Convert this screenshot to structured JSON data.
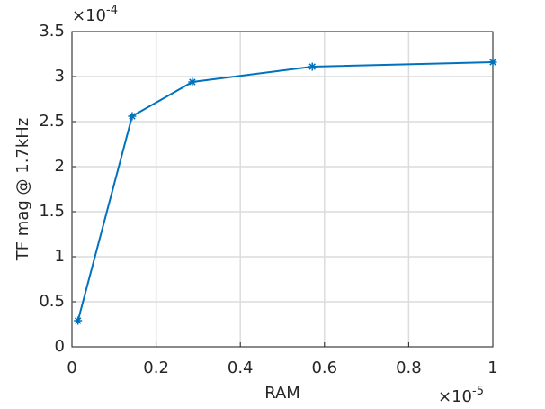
{
  "chart_data": {
    "type": "line",
    "x_label": "RAM",
    "y_label": "TF mag @ 1.7kHz",
    "x_multiplier": {
      "base": "×10",
      "exponent": "-5"
    },
    "y_multiplier": {
      "base": "×10",
      "exponent": "-4"
    },
    "x": [
      0.0143,
      0.143,
      0.286,
      0.571,
      1.0
    ],
    "series": [
      {
        "name": "TF mag",
        "color": "#0072bd",
        "values": [
          0.29,
          2.56,
          2.94,
          3.11,
          3.16
        ]
      }
    ],
    "xlim": [
      0,
      1
    ],
    "xticks": [
      0,
      0.2,
      0.4,
      0.6,
      0.8,
      1
    ],
    "ylim": [
      0,
      3.5
    ],
    "yticks": [
      0,
      0.5,
      1,
      1.5,
      2,
      2.5,
      3,
      3.5
    ],
    "grid": true
  }
}
